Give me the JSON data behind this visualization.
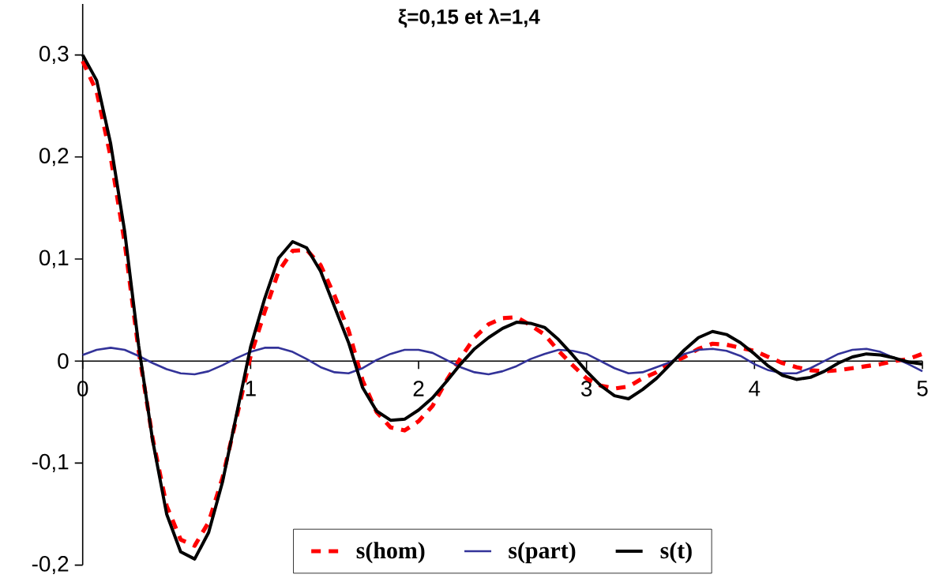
{
  "chart_data": {
    "type": "line",
    "title": "ξ=0,15  et   λ=1,4",
    "x": [
      0,
      0.0833,
      0.1667,
      0.25,
      0.3333,
      0.4167,
      0.5,
      0.5833,
      0.6667,
      0.75,
      0.8333,
      0.9167,
      1,
      1.0833,
      1.1667,
      1.25,
      1.3333,
      1.4167,
      1.5,
      1.5833,
      1.6667,
      1.75,
      1.8333,
      1.9167,
      2,
      2.0833,
      2.1667,
      2.25,
      2.3333,
      2.4167,
      2.5,
      2.5833,
      2.6667,
      2.75,
      2.8333,
      2.9167,
      3,
      3.0833,
      3.1667,
      3.25,
      3.3333,
      3.4167,
      3.5,
      3.5833,
      3.6667,
      3.75,
      3.8333,
      3.9167,
      4,
      4.0833,
      4.1667,
      4.25,
      4.3333,
      4.4167,
      4.5,
      4.5833,
      4.6667,
      4.75,
      4.8333,
      4.9167,
      5
    ],
    "series": [
      {
        "name": "s(hom)",
        "color": "#ff0000",
        "line_style": "dashed",
        "values": [
          0.294,
          0.264,
          0.2,
          0.116,
          0.01,
          -0.076,
          -0.142,
          -0.175,
          -0.181,
          -0.158,
          -0.114,
          -0.055,
          0.005,
          0.048,
          0.088,
          0.108,
          0.109,
          0.094,
          0.064,
          0.03,
          -0.019,
          -0.05,
          -0.065,
          -0.068,
          -0.059,
          -0.044,
          -0.019,
          0.003,
          0.023,
          0.036,
          0.042,
          0.043,
          0.035,
          0.026,
          0.01,
          -0.004,
          -0.017,
          -0.024,
          -0.027,
          -0.025,
          -0.017,
          -0.011,
          -0.002,
          0.004,
          0.012,
          0.017,
          0.016,
          0.013,
          0.01,
          0.004,
          -0.002,
          -0.006,
          -0.009,
          -0.01,
          -0.009,
          -0.007,
          -0.005,
          -0.003,
          0.0,
          0.002,
          0.007
        ]
      },
      {
        "name": "s(part)",
        "color": "#333399",
        "line_style": "solid",
        "values": [
          0.006,
          0.011,
          0.013,
          0.011,
          0.005,
          -0.002,
          -0.008,
          -0.012,
          -0.013,
          -0.01,
          -0.004,
          0.003,
          0.009,
          0.013,
          0.013,
          0.009,
          0.002,
          -0.006,
          -0.011,
          -0.012,
          -0.007,
          0.001,
          0.007,
          0.011,
          0.011,
          0.008,
          0.001,
          -0.006,
          -0.011,
          -0.013,
          -0.01,
          -0.005,
          0.002,
          0.007,
          0.011,
          0.01,
          0.007,
          0.0,
          -0.007,
          -0.012,
          -0.011,
          -0.006,
          -0.001,
          0.007,
          0.011,
          0.012,
          0.01,
          0.005,
          -0.003,
          -0.009,
          -0.012,
          -0.012,
          -0.007,
          0.0,
          0.007,
          0.011,
          0.012,
          0.009,
          0.003,
          -0.003,
          -0.01
        ]
      },
      {
        "name": "s(t)",
        "color": "#000000",
        "line_style": "solid",
        "values": [
          0.3,
          0.275,
          0.213,
          0.127,
          0.015,
          -0.078,
          -0.15,
          -0.187,
          -0.194,
          -0.168,
          -0.118,
          -0.052,
          0.014,
          0.061,
          0.101,
          0.117,
          0.111,
          0.088,
          0.053,
          0.018,
          -0.026,
          -0.049,
          -0.058,
          -0.057,
          -0.048,
          -0.036,
          -0.02,
          -0.003,
          0.012,
          0.023,
          0.032,
          0.038,
          0.037,
          0.033,
          0.021,
          0.006,
          -0.01,
          -0.024,
          -0.034,
          -0.037,
          -0.028,
          -0.017,
          -0.003,
          0.011,
          0.023,
          0.029,
          0.026,
          0.018,
          0.007,
          -0.005,
          -0.014,
          -0.018,
          -0.016,
          -0.01,
          -0.002,
          0.004,
          0.007,
          0.006,
          0.003,
          -0.001,
          -0.003
        ]
      }
    ],
    "xlim": [
      0,
      5
    ],
    "ylim": [
      -0.2,
      0.35
    ],
    "xticks": [
      0,
      1,
      2,
      3,
      4,
      5
    ],
    "yticks": [
      {
        "value": -0.2,
        "label": "-0,2"
      },
      {
        "value": -0.1,
        "label": "-0,1"
      },
      {
        "value": 0,
        "label": "0"
      },
      {
        "value": 0.1,
        "label": "0,1"
      },
      {
        "value": 0.2,
        "label": "0,2"
      },
      {
        "value": 0.3,
        "label": "0,3"
      }
    ],
    "grid": false,
    "legend": "bottom"
  }
}
